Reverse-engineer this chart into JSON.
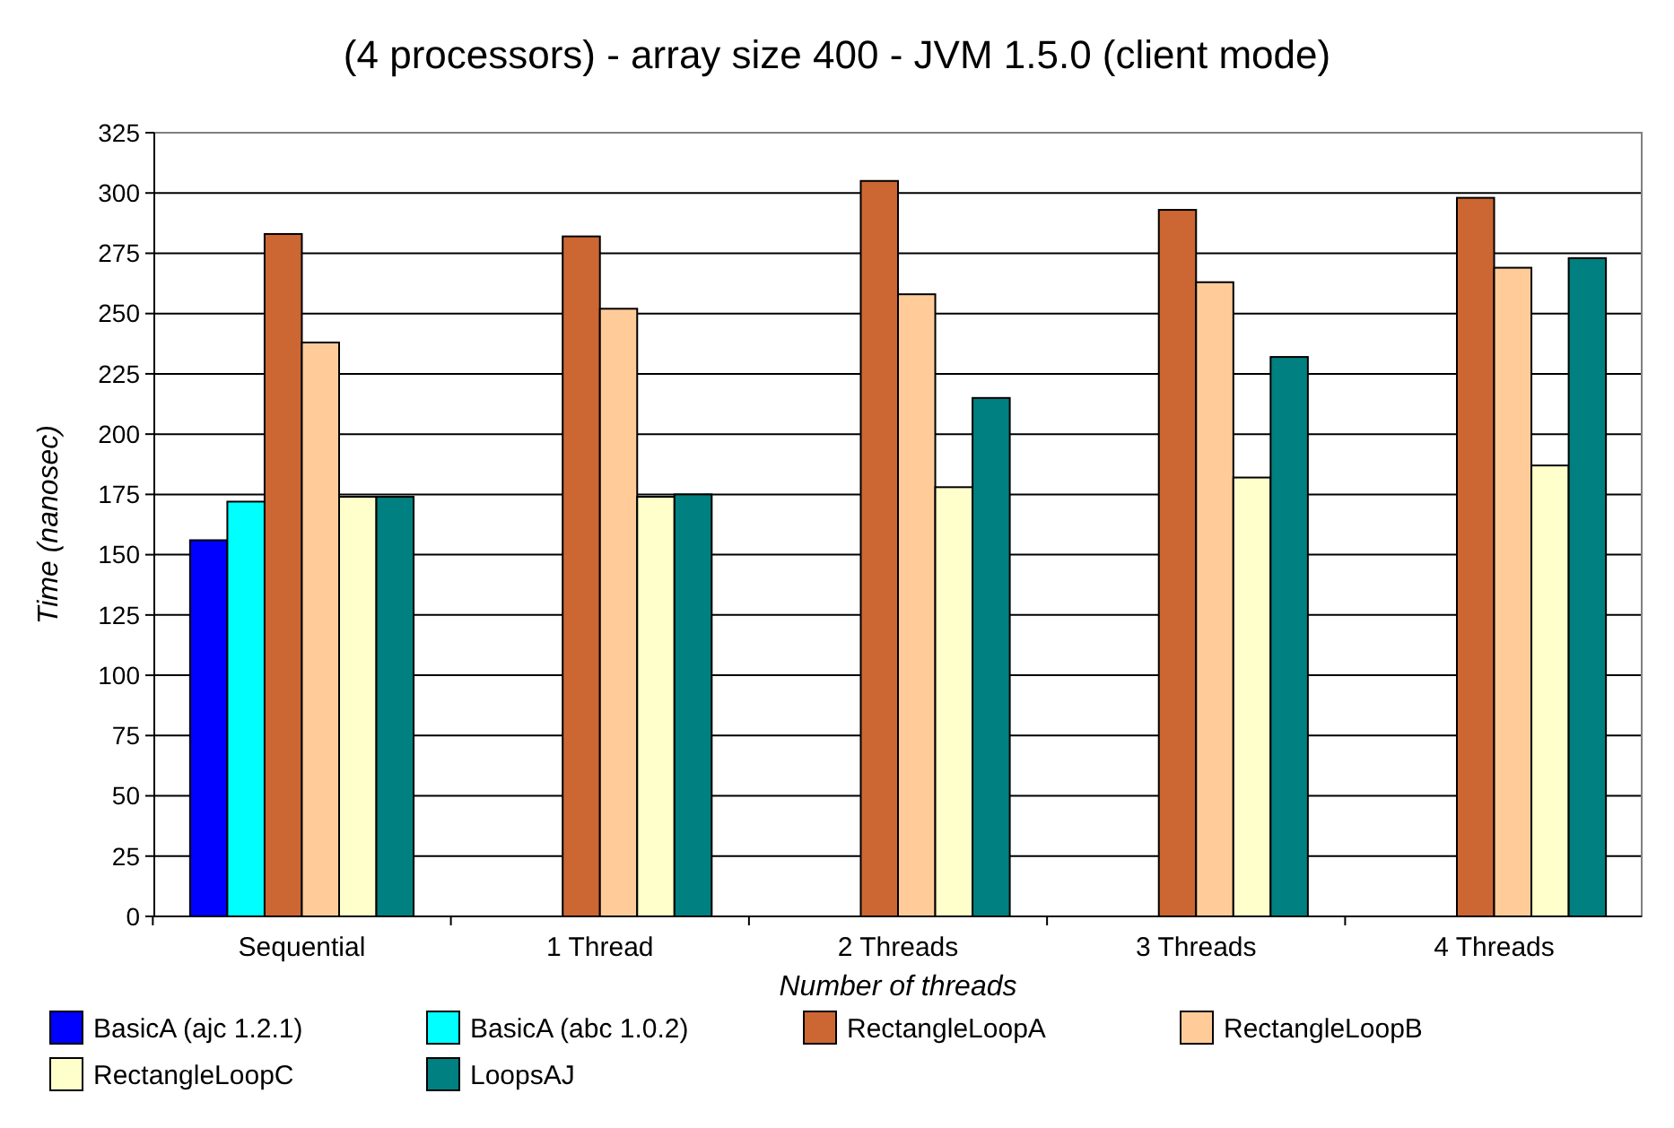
{
  "chart_data": {
    "type": "bar",
    "title": "(4 processors)  -  array size 400  -  JVM 1.5.0 (client mode)",
    "xlabel": "Number of threads",
    "ylabel": "Time (nanosec)",
    "categories": [
      "Sequential",
      "1 Thread",
      "2 Threads",
      "3 Threads",
      "4 Threads"
    ],
    "series": [
      {
        "name": "BasicA (ajc 1.2.1)",
        "color": "#0000ff",
        "values": [
          156,
          0,
          0,
          0,
          0
        ]
      },
      {
        "name": "BasicA (abc 1.0.2)",
        "color": "#00ffff",
        "values": [
          172,
          0,
          0,
          0,
          0
        ]
      },
      {
        "name": "RectangleLoopA",
        "color": "#cc6633",
        "values": [
          283,
          282,
          305,
          293,
          298
        ]
      },
      {
        "name": "RectangleLoopB",
        "color": "#ffcc99",
        "values": [
          238,
          252,
          258,
          263,
          269
        ]
      },
      {
        "name": "RectangleLoopC",
        "color": "#ffffcc",
        "values": [
          174,
          174,
          178,
          182,
          187
        ]
      },
      {
        "name": "LoopsAJ",
        "color": "#008080",
        "values": [
          174,
          175,
          215,
          232,
          273
        ]
      }
    ],
    "ylim": [
      0,
      325
    ],
    "yticks": [
      0,
      25,
      50,
      75,
      100,
      125,
      150,
      175,
      200,
      225,
      250,
      275,
      300,
      325
    ],
    "grid": "y",
    "legend": "bottom"
  }
}
